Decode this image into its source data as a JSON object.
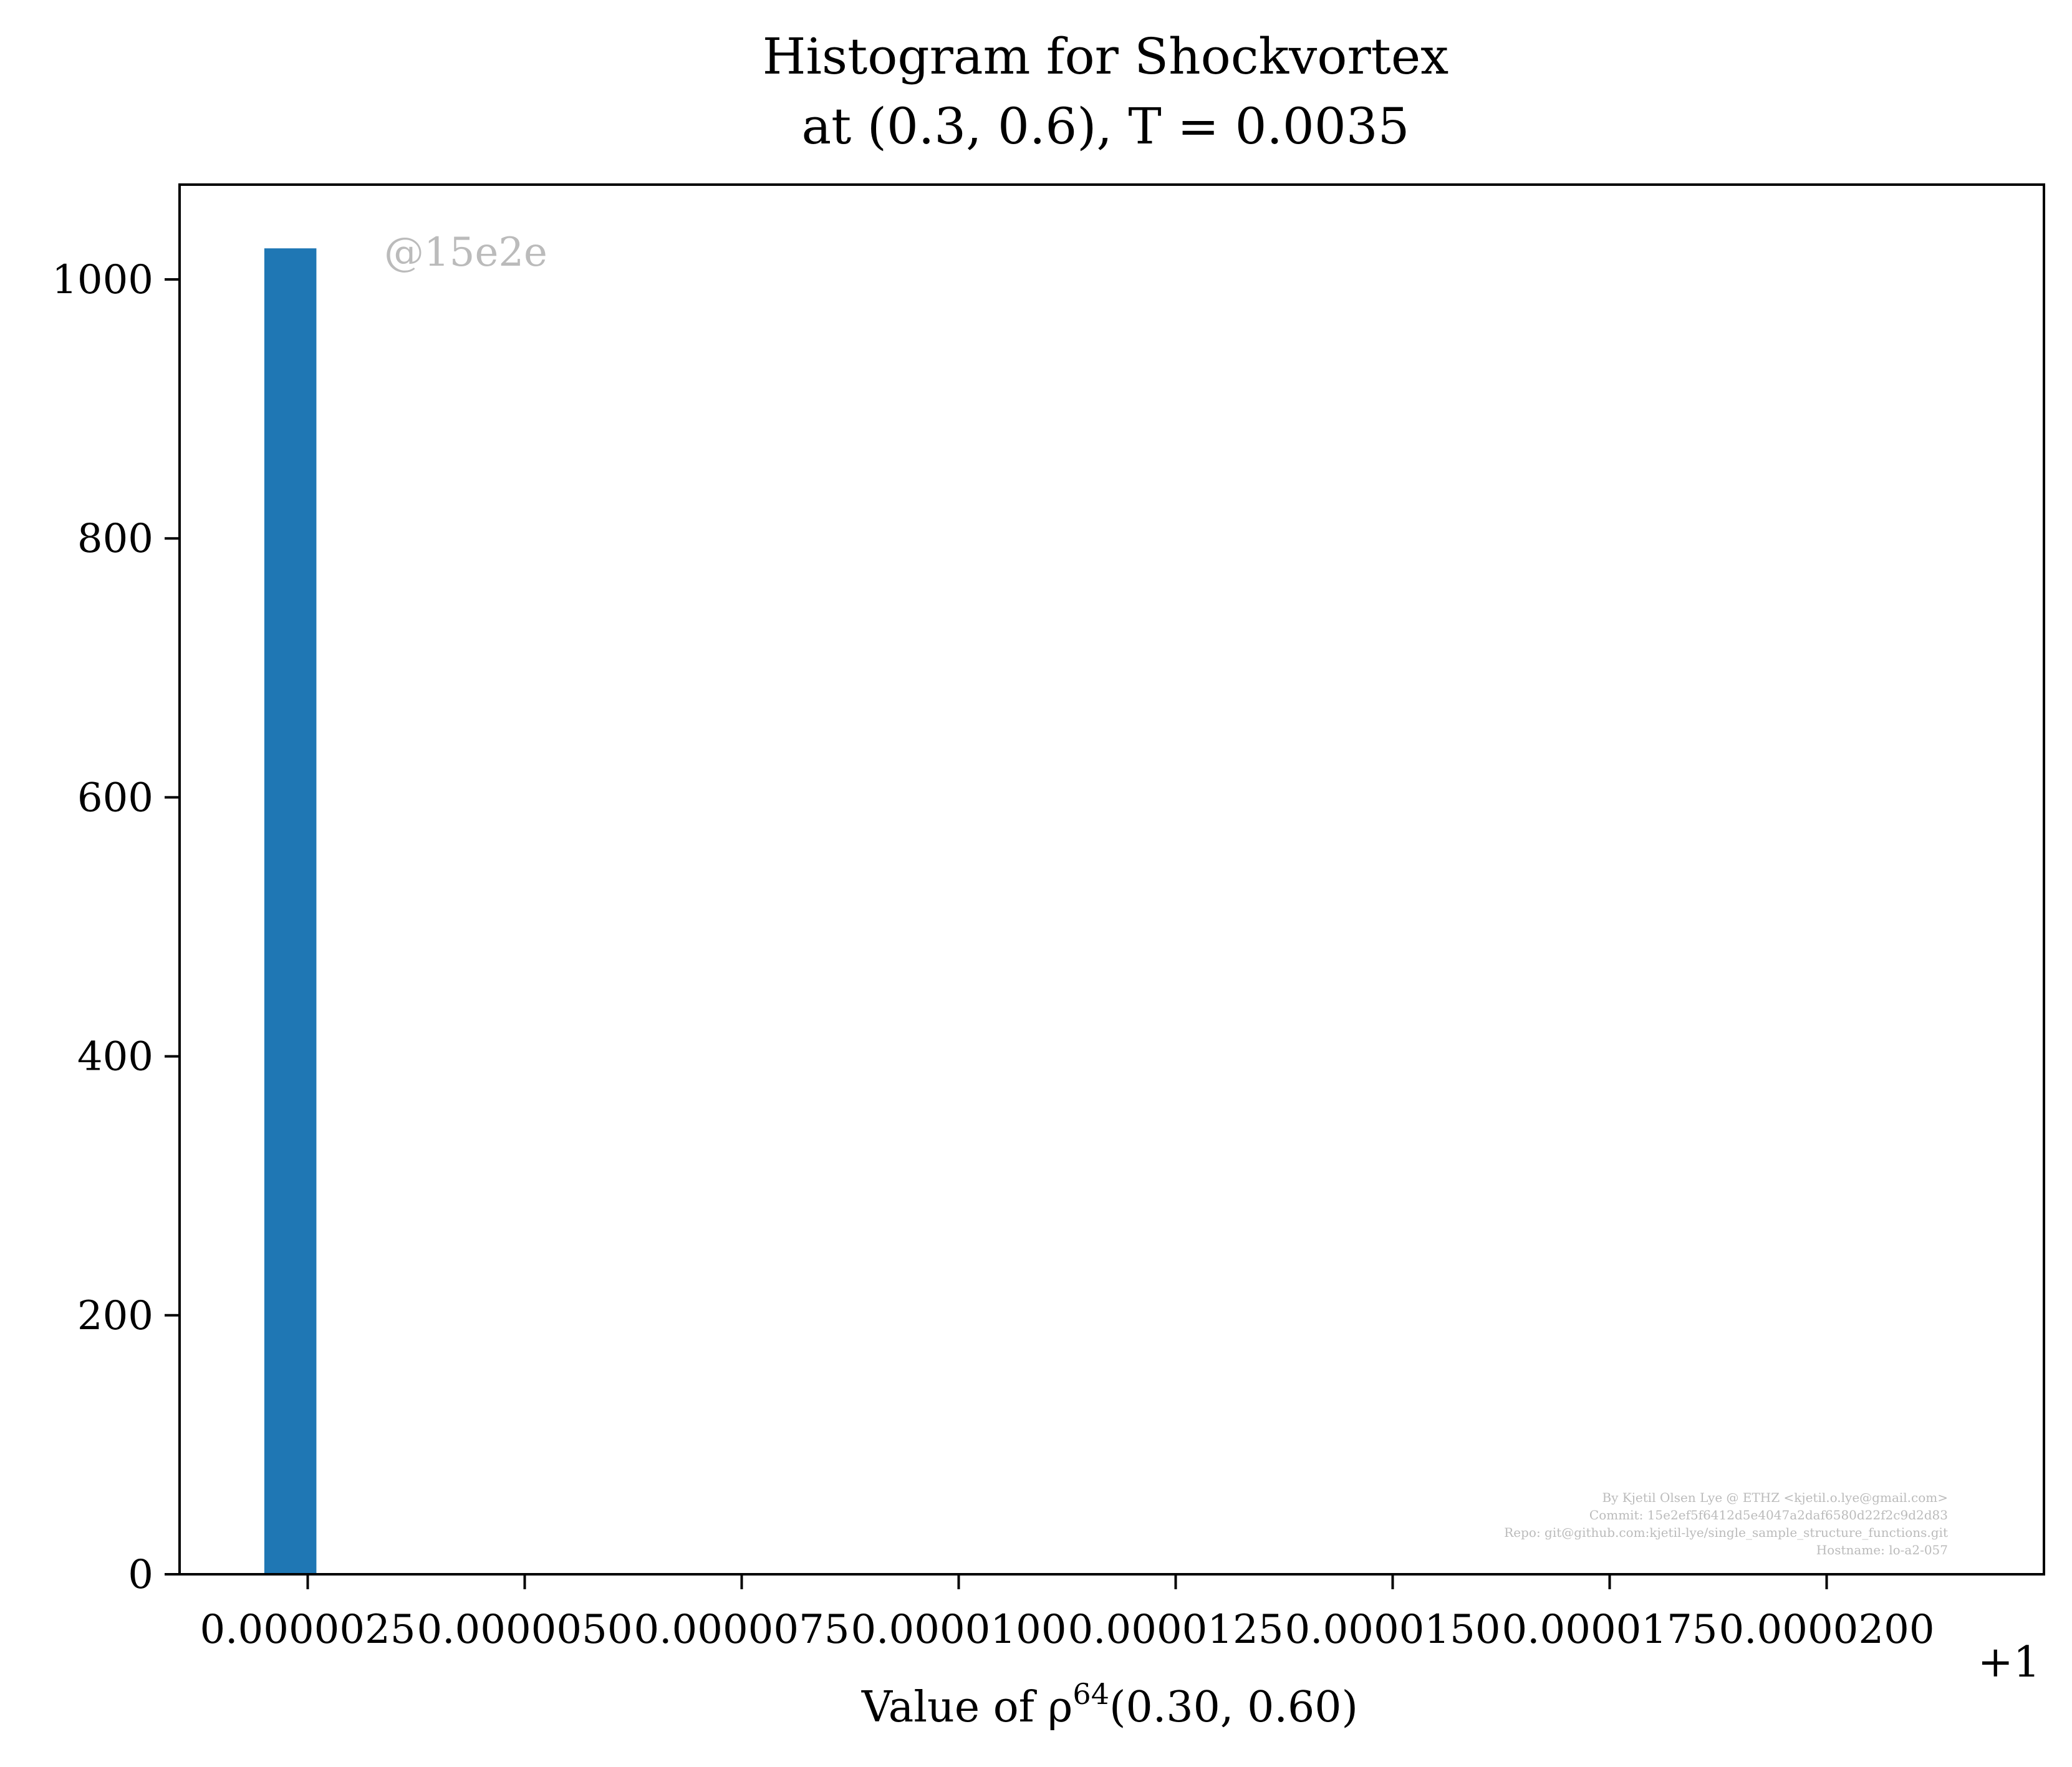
{
  "chart_data": {
    "type": "bar",
    "title_line1": "Histogram for Shockvortex",
    "title_line2": "at (0.3, 0.6), T = 0.0035",
    "xlabel_prefix": "Value of ρ",
    "xlabel_sup": "64",
    "xlabel_suffix": "(0.30, 0.60)",
    "ylabel": "",
    "x_offset_label": "+1",
    "xlim": [
      -0.0,
      2.1e-06
    ],
    "ylim": [
      0,
      1075
    ],
    "x_ticks": [
      2.5e-06,
      5e-06,
      7.5e-06,
      1e-05,
      1.25e-05,
      1.5e-05,
      1.75e-05,
      2e-05
    ],
    "x_tick_labels": [
      "0.0000025",
      "0.0000050",
      "0.0000075",
      "0.0000100",
      "0.0000125",
      "0.0000150",
      "0.0000175",
      "0.0000200"
    ],
    "y_ticks": [
      0,
      200,
      400,
      600,
      800,
      1000
    ],
    "y_tick_labels": [
      "0",
      "200",
      "400",
      "600",
      "800",
      "1000"
    ],
    "bars": [
      {
        "x_left": 2e-06,
        "x_right": 2.6e-06,
        "count": 1024
      }
    ],
    "bar_color": "#1f77b4",
    "grid": false,
    "watermark": "@15e2e",
    "credits": [
      "By Kjetil Olsen Lye @ ETHZ <kjetil.o.lye@gmail.com>",
      "Commit: 15e2ef5f6412d5e4047a2daf6580d22f2c9d2d83",
      "Repo: git@github.com:kjetil-lye/single_sample_structure_functions.git",
      "Hostname: lo-a2-057"
    ]
  }
}
